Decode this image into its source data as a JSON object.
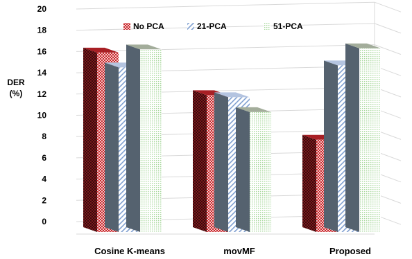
{
  "chart_data": {
    "type": "bar",
    "style": "3d-clustered-column",
    "categories": [
      "Cosine K-means",
      "movMF",
      "Proposed"
    ],
    "series": [
      {
        "name": "No PCA",
        "values": [
          15.9,
          11.9,
          7.7
        ],
        "color": "#c8282d",
        "pattern": "red-checker"
      },
      {
        "name": "21-PCA",
        "values": [
          14.5,
          11.7,
          14.7
        ],
        "color": "#7f9fd0",
        "pattern": "blue-diagonal"
      },
      {
        "name": "51-PCA",
        "values": [
          16.2,
          10.3,
          16.3
        ],
        "color": "#a8d89c",
        "pattern": "green-dots"
      }
    ],
    "ylabel_line1": "DER",
    "ylabel_line2": "(%)",
    "yticks": [
      "0",
      "2",
      "4",
      "6",
      "8",
      "10",
      "12",
      "14",
      "16",
      "18",
      "20"
    ],
    "ylim": [
      0,
      20
    ],
    "legend_position": "top",
    "grid": true
  }
}
